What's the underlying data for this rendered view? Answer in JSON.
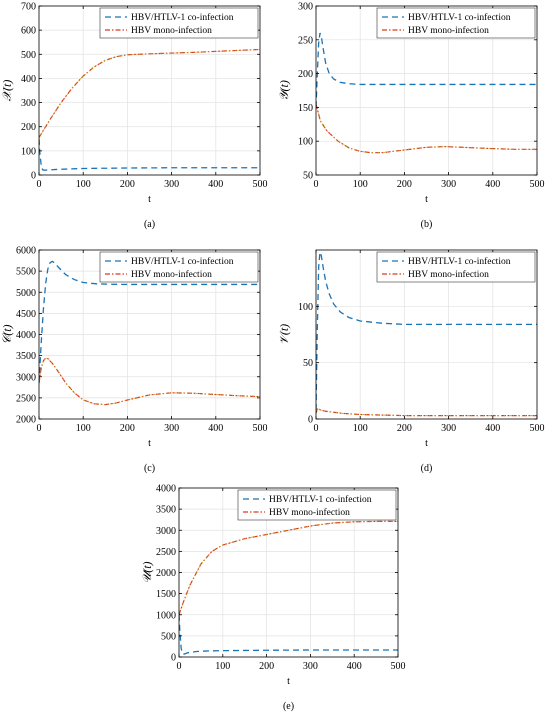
{
  "colors": {
    "coinfection": "#1a74b8",
    "mono": "#d93a1a",
    "mono_dot": "#c8a020",
    "axis": "#000000",
    "grid": "#e2e2e2"
  },
  "legend": {
    "coinfection": "HBV/HTLV-1 co-infection",
    "mono": "HBV mono-infection"
  },
  "chart_data": [
    {
      "type": "line",
      "panel_label": "(a)",
      "ylabel": "𝒳(t)",
      "xlabel": "t",
      "xlim": [
        0,
        500
      ],
      "ylim": [
        0,
        700
      ],
      "xticks": [
        0,
        100,
        200,
        300,
        400,
        500
      ],
      "yticks": [
        0,
        100,
        200,
        300,
        400,
        500,
        600,
        700
      ],
      "grid": true,
      "legend_position": "top-right",
      "series": [
        {
          "name": "HBV/HTLV-1 co-infection",
          "style": "dashed",
          "x": [
            0,
            2,
            5,
            8,
            12,
            20,
            40,
            70,
            100,
            150,
            200,
            300,
            400,
            500
          ],
          "y": [
            150,
            90,
            40,
            22,
            20,
            21,
            23,
            25,
            27,
            28,
            29,
            30,
            30,
            30
          ]
        },
        {
          "name": "HBV mono-infection",
          "style": "dashdot",
          "x": [
            0,
            10,
            25,
            50,
            75,
            100,
            125,
            150,
            175,
            200,
            250,
            300,
            350,
            400,
            450,
            500
          ],
          "y": [
            155,
            185,
            230,
            300,
            360,
            410,
            448,
            475,
            490,
            498,
            502,
            505,
            508,
            512,
            516,
            520
          ]
        }
      ]
    },
    {
      "type": "line",
      "panel_label": "(b)",
      "ylabel": "𝒴(t)",
      "xlabel": "t",
      "xlim": [
        0,
        500
      ],
      "ylim": [
        50,
        300
      ],
      "xticks": [
        0,
        100,
        200,
        300,
        400,
        500
      ],
      "yticks": [
        50,
        100,
        150,
        200,
        250,
        300
      ],
      "grid": true,
      "legend_position": "top-right",
      "series": [
        {
          "name": "HBV/HTLV-1 co-infection",
          "style": "dashed",
          "x": [
            0,
            3,
            6,
            9,
            12,
            16,
            22,
            30,
            40,
            55,
            75,
            100,
            150,
            200,
            300,
            400,
            500
          ],
          "y": [
            150,
            200,
            245,
            260,
            255,
            238,
            215,
            200,
            192,
            187,
            185,
            184,
            184,
            184,
            184,
            184,
            184
          ]
        },
        {
          "name": "HBV mono-infection",
          "style": "dashdot",
          "x": [
            0,
            10,
            25,
            50,
            75,
            100,
            125,
            150,
            175,
            200,
            250,
            290,
            330,
            400,
            450,
            500
          ],
          "y": [
            155,
            130,
            115,
            100,
            90,
            85,
            83,
            83,
            85,
            87,
            91,
            92,
            91,
            89,
            88,
            88
          ]
        }
      ]
    },
    {
      "type": "line",
      "panel_label": "(c)",
      "ylabel": "𝒞(t)",
      "xlabel": "t",
      "xlim": [
        0,
        500
      ],
      "ylim": [
        2000,
        6000
      ],
      "xticks": [
        0,
        100,
        200,
        300,
        400,
        500
      ],
      "yticks": [
        2000,
        2500,
        3000,
        3500,
        4000,
        4500,
        5000,
        5500,
        6000
      ],
      "grid": true,
      "legend_position": "top-right",
      "series": [
        {
          "name": "HBV/HTLV-1 co-infection",
          "style": "dashed",
          "x": [
            0,
            5,
            10,
            15,
            20,
            25,
            30,
            35,
            45,
            60,
            80,
            100,
            130,
            160,
            200,
            300,
            400,
            500
          ],
          "y": [
            2850,
            3800,
            4600,
            5200,
            5550,
            5700,
            5730,
            5700,
            5580,
            5420,
            5300,
            5230,
            5200,
            5190,
            5185,
            5185,
            5185,
            5185
          ]
        },
        {
          "name": "HBV mono-infection",
          "style": "dashdot",
          "x": [
            0,
            5,
            10,
            15,
            20,
            30,
            45,
            60,
            80,
            100,
            125,
            150,
            175,
            200,
            250,
            300,
            350,
            400,
            450,
            500
          ],
          "y": [
            2850,
            3200,
            3380,
            3440,
            3430,
            3320,
            3100,
            2860,
            2620,
            2450,
            2360,
            2340,
            2380,
            2450,
            2570,
            2620,
            2610,
            2580,
            2550,
            2530
          ]
        }
      ]
    },
    {
      "type": "line",
      "panel_label": "(d)",
      "ylabel": "𝒱(t)",
      "xlabel": "t",
      "xlim": [
        0,
        500
      ],
      "ylim": [
        0,
        150
      ],
      "xticks": [
        0,
        100,
        200,
        300,
        400,
        500
      ],
      "yticks": [
        0,
        50,
        100
      ],
      "grid": true,
      "legend_position": "top-right",
      "series": [
        {
          "name": "HBV/HTLV-1 co-infection",
          "style": "dashed",
          "x": [
            0,
            3,
            6,
            9,
            12,
            16,
            22,
            30,
            40,
            55,
            75,
            100,
            150,
            200,
            300,
            400,
            500
          ],
          "y": [
            8,
            80,
            135,
            148,
            145,
            135,
            122,
            111,
            102,
            95,
            90,
            87,
            85,
            84,
            84,
            84,
            84
          ]
        },
        {
          "name": "HBV mono-infection",
          "style": "dashdot",
          "x": [
            0,
            3,
            6,
            10,
            20,
            40,
            60,
            100,
            150,
            200,
            300,
            400,
            500
          ],
          "y": [
            5,
            9,
            9,
            8,
            7,
            6,
            5,
            4,
            3.5,
            3,
            3,
            3,
            3
          ]
        }
      ]
    },
    {
      "type": "line",
      "panel_label": "(e)",
      "ylabel": "𝒰(t)",
      "xlabel": "t",
      "xlim": [
        0,
        500
      ],
      "ylim": [
        0,
        4000
      ],
      "xticks": [
        0,
        100,
        200,
        300,
        400,
        500
      ],
      "yticks": [
        0,
        500,
        1000,
        1500,
        2000,
        2500,
        3000,
        3500,
        4000
      ],
      "grid": true,
      "legend_position": "top-right",
      "series": [
        {
          "name": "HBV/HTLV-1 co-infection",
          "style": "dashed",
          "x": [
            0,
            2,
            5,
            8,
            12,
            20,
            40,
            70,
            100,
            150,
            200,
            300,
            400,
            500
          ],
          "y": [
            1000,
            600,
            200,
            80,
            70,
            100,
            130,
            145,
            150,
            155,
            160,
            165,
            165,
            165
          ]
        },
        {
          "name": "HBV mono-infection",
          "style": "dashdot",
          "x": [
            0,
            10,
            25,
            50,
            75,
            100,
            150,
            200,
            250,
            300,
            350,
            400,
            450,
            500
          ],
          "y": [
            1000,
            1300,
            1700,
            2200,
            2500,
            2650,
            2800,
            2900,
            3000,
            3100,
            3170,
            3200,
            3210,
            3210
          ]
        }
      ]
    }
  ]
}
